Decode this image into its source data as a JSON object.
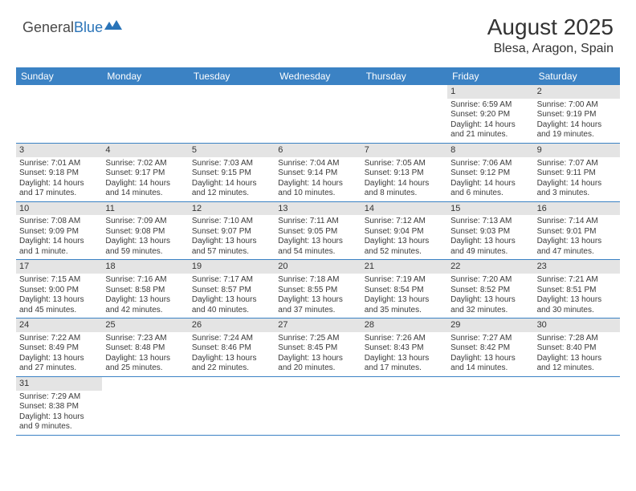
{
  "brand": {
    "part1": "General",
    "part2": "Blue"
  },
  "title": "August 2025",
  "location": "Blesa, Aragon, Spain",
  "colors": {
    "header_bar": "#3b82c4",
    "daynum_bg": "#e4e4e4",
    "text": "#333333",
    "brand_blue": "#2a74b8"
  },
  "weekdays": [
    "Sunday",
    "Monday",
    "Tuesday",
    "Wednesday",
    "Thursday",
    "Friday",
    "Saturday"
  ],
  "weeks": [
    [
      null,
      null,
      null,
      null,
      null,
      {
        "n": "1",
        "sr": "6:59 AM",
        "ss": "9:20 PM",
        "dl": "14 hours and 21 minutes."
      },
      {
        "n": "2",
        "sr": "7:00 AM",
        "ss": "9:19 PM",
        "dl": "14 hours and 19 minutes."
      }
    ],
    [
      {
        "n": "3",
        "sr": "7:01 AM",
        "ss": "9:18 PM",
        "dl": "14 hours and 17 minutes."
      },
      {
        "n": "4",
        "sr": "7:02 AM",
        "ss": "9:17 PM",
        "dl": "14 hours and 14 minutes."
      },
      {
        "n": "5",
        "sr": "7:03 AM",
        "ss": "9:15 PM",
        "dl": "14 hours and 12 minutes."
      },
      {
        "n": "6",
        "sr": "7:04 AM",
        "ss": "9:14 PM",
        "dl": "14 hours and 10 minutes."
      },
      {
        "n": "7",
        "sr": "7:05 AM",
        "ss": "9:13 PM",
        "dl": "14 hours and 8 minutes."
      },
      {
        "n": "8",
        "sr": "7:06 AM",
        "ss": "9:12 PM",
        "dl": "14 hours and 6 minutes."
      },
      {
        "n": "9",
        "sr": "7:07 AM",
        "ss": "9:11 PM",
        "dl": "14 hours and 3 minutes."
      }
    ],
    [
      {
        "n": "10",
        "sr": "7:08 AM",
        "ss": "9:09 PM",
        "dl": "14 hours and 1 minute."
      },
      {
        "n": "11",
        "sr": "7:09 AM",
        "ss": "9:08 PM",
        "dl": "13 hours and 59 minutes."
      },
      {
        "n": "12",
        "sr": "7:10 AM",
        "ss": "9:07 PM",
        "dl": "13 hours and 57 minutes."
      },
      {
        "n": "13",
        "sr": "7:11 AM",
        "ss": "9:05 PM",
        "dl": "13 hours and 54 minutes."
      },
      {
        "n": "14",
        "sr": "7:12 AM",
        "ss": "9:04 PM",
        "dl": "13 hours and 52 minutes."
      },
      {
        "n": "15",
        "sr": "7:13 AM",
        "ss": "9:03 PM",
        "dl": "13 hours and 49 minutes."
      },
      {
        "n": "16",
        "sr": "7:14 AM",
        "ss": "9:01 PM",
        "dl": "13 hours and 47 minutes."
      }
    ],
    [
      {
        "n": "17",
        "sr": "7:15 AM",
        "ss": "9:00 PM",
        "dl": "13 hours and 45 minutes."
      },
      {
        "n": "18",
        "sr": "7:16 AM",
        "ss": "8:58 PM",
        "dl": "13 hours and 42 minutes."
      },
      {
        "n": "19",
        "sr": "7:17 AM",
        "ss": "8:57 PM",
        "dl": "13 hours and 40 minutes."
      },
      {
        "n": "20",
        "sr": "7:18 AM",
        "ss": "8:55 PM",
        "dl": "13 hours and 37 minutes."
      },
      {
        "n": "21",
        "sr": "7:19 AM",
        "ss": "8:54 PM",
        "dl": "13 hours and 35 minutes."
      },
      {
        "n": "22",
        "sr": "7:20 AM",
        "ss": "8:52 PM",
        "dl": "13 hours and 32 minutes."
      },
      {
        "n": "23",
        "sr": "7:21 AM",
        "ss": "8:51 PM",
        "dl": "13 hours and 30 minutes."
      }
    ],
    [
      {
        "n": "24",
        "sr": "7:22 AM",
        "ss": "8:49 PM",
        "dl": "13 hours and 27 minutes."
      },
      {
        "n": "25",
        "sr": "7:23 AM",
        "ss": "8:48 PM",
        "dl": "13 hours and 25 minutes."
      },
      {
        "n": "26",
        "sr": "7:24 AM",
        "ss": "8:46 PM",
        "dl": "13 hours and 22 minutes."
      },
      {
        "n": "27",
        "sr": "7:25 AM",
        "ss": "8:45 PM",
        "dl": "13 hours and 20 minutes."
      },
      {
        "n": "28",
        "sr": "7:26 AM",
        "ss": "8:43 PM",
        "dl": "13 hours and 17 minutes."
      },
      {
        "n": "29",
        "sr": "7:27 AM",
        "ss": "8:42 PM",
        "dl": "13 hours and 14 minutes."
      },
      {
        "n": "30",
        "sr": "7:28 AM",
        "ss": "8:40 PM",
        "dl": "13 hours and 12 minutes."
      }
    ],
    [
      {
        "n": "31",
        "sr": "7:29 AM",
        "ss": "8:38 PM",
        "dl": "13 hours and 9 minutes."
      },
      null,
      null,
      null,
      null,
      null,
      null
    ]
  ],
  "labels": {
    "sunrise": "Sunrise: ",
    "sunset": "Sunset: ",
    "daylight": "Daylight: "
  }
}
